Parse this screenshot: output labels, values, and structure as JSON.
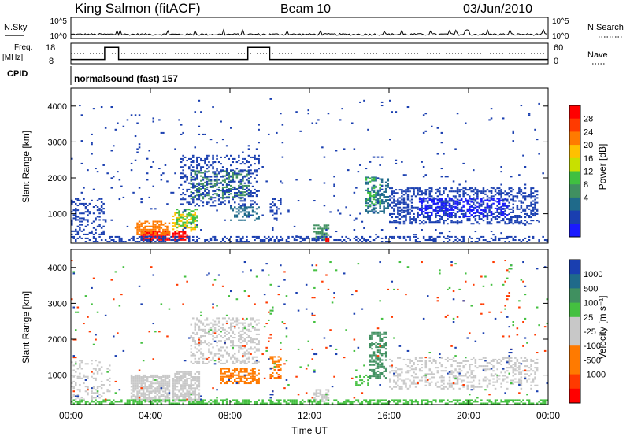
{
  "header": {
    "station": "King Salmon (fitACF)",
    "beam": "Beam 10",
    "date": "03/Jun/2010"
  },
  "status_panel": {
    "nsky_label": "N.Sky",
    "nsky_ticks": [
      "10^5",
      "10^0"
    ],
    "nsearch_label": "N.Search",
    "nsearch_ticks": [
      "10^5",
      "10^0"
    ],
    "freq_label_1": "Freq.",
    "freq_label_2": "[MHz]",
    "freq_ticks": [
      "18",
      "8"
    ],
    "nave_label": "Nave",
    "nave_ticks": [
      "60",
      "0"
    ],
    "cpid_label": "CPID",
    "cpid_text": "normalsound (fast) 157",
    "freq_steps": [
      {
        "t": 0.0,
        "f": 10
      },
      {
        "t": 1.7,
        "f": 10
      },
      {
        "t": 1.7,
        "f": 17
      },
      {
        "t": 2.4,
        "f": 17
      },
      {
        "t": 2.4,
        "f": 10
      },
      {
        "t": 8.9,
        "f": 10
      },
      {
        "t": 8.9,
        "f": 17
      },
      {
        "t": 10.0,
        "f": 17
      },
      {
        "t": 10.0,
        "f": 10
      },
      {
        "t": 24.0,
        "f": 10
      }
    ]
  },
  "legends": {
    "power": {
      "label": "Power [dB]",
      "ticks": [
        "28",
        "24",
        "20",
        "16",
        "12",
        "8",
        "4"
      ],
      "colors": [
        "#ff0000",
        "#ff3a00",
        "#ff7a00",
        "#ffc000",
        "#c8e000",
        "#40c040",
        "#409060",
        "#1f6a8a",
        "#1a3fb0",
        "#1a1aff"
      ]
    },
    "velocity": {
      "label": "Velocity [m s⁻¹]",
      "ticks": [
        "1000",
        "500",
        "100",
        "25",
        "-25",
        "-100",
        "-500",
        "-1000"
      ],
      "colors": [
        "#1a3fb0",
        "#1f6a8a",
        "#409060",
        "#44c040",
        "#c8c8c8",
        "#c8c8c8",
        "#ff7a00",
        "#ff7a00",
        "#ff3a00",
        "#ff0000"
      ]
    }
  },
  "chart_data": [
    {
      "type": "heatmap",
      "panel": "power",
      "ylabel": "Slant Range [km]",
      "yticks": [
        "4000",
        "3000",
        "2000",
        "1000"
      ],
      "ylim": [
        180,
        4500
      ],
      "xlim": [
        0,
        24
      ],
      "blobs": [
        {
          "t0": 3.5,
          "t1": 5.0,
          "r0": 250,
          "r1": 500,
          "color": "#ff0000",
          "density": 0.9
        },
        {
          "t0": 3.3,
          "t1": 5.0,
          "r0": 400,
          "r1": 800,
          "color": "#ff7a00",
          "density": 0.55
        },
        {
          "t0": 5.1,
          "t1": 6.0,
          "r0": 250,
          "r1": 500,
          "color": "#ff0000",
          "density": 0.7
        },
        {
          "t0": 5.1,
          "t1": 6.2,
          "r0": 500,
          "r1": 1000,
          "color": "#ffc000",
          "density": 0.5
        },
        {
          "t0": 5.3,
          "t1": 6.4,
          "r0": 600,
          "r1": 1100,
          "color": "#40c040",
          "density": 0.4
        },
        {
          "t0": 6.0,
          "t1": 9.0,
          "r0": 1400,
          "r1": 2200,
          "color": "#409060",
          "density": 0.35
        },
        {
          "t0": 5.5,
          "t1": 9.5,
          "r0": 1200,
          "r1": 2600,
          "color": "#1a3fb0",
          "density": 0.3
        },
        {
          "t0": 8.0,
          "t1": 9.5,
          "r0": 800,
          "r1": 1200,
          "color": "#1f6a8a",
          "density": 0.3
        },
        {
          "t0": 12.2,
          "t1": 13.0,
          "r0": 250,
          "r1": 700,
          "color": "#409060",
          "density": 0.5
        },
        {
          "t0": 12.6,
          "t1": 13.0,
          "r0": 200,
          "r1": 320,
          "color": "#ff0000",
          "density": 0.6
        },
        {
          "t0": 14.8,
          "t1": 16.0,
          "r0": 1000,
          "r1": 2000,
          "color": "#1f6a8a",
          "density": 0.45
        },
        {
          "t0": 14.8,
          "t1": 15.6,
          "r0": 1200,
          "r1": 2000,
          "color": "#40c040",
          "density": 0.25
        },
        {
          "t0": 16.0,
          "t1": 23.5,
          "r0": 700,
          "r1": 1700,
          "color": "#1a3fb0",
          "density": 0.4
        },
        {
          "t0": 17.5,
          "t1": 22.0,
          "r0": 900,
          "r1": 1400,
          "color": "#1a1aff",
          "density": 0.35
        },
        {
          "t0": 0.0,
          "t1": 1.8,
          "r0": 400,
          "r1": 1400,
          "color": "#1a3fb0",
          "density": 0.25
        },
        {
          "t0": 10.0,
          "t1": 10.6,
          "r0": 800,
          "r1": 1400,
          "color": "#1a3fb0",
          "density": 0.35
        },
        {
          "t0": 0.0,
          "t1": 24.0,
          "r0": 200,
          "r1": 340,
          "color": "#1a3fb0",
          "density": 0.35
        },
        {
          "t0": 0.0,
          "t1": 24.0,
          "r0": 350,
          "r1": 4200,
          "color": "#1a3fb0",
          "density": 0.015
        }
      ]
    },
    {
      "type": "heatmap",
      "panel": "velocity",
      "ylabel": "Slant Range [km]",
      "yticks": [
        "4000",
        "3000",
        "2000",
        "1000"
      ],
      "xticks": [
        "00:00",
        "04:00",
        "08:00",
        "12:00",
        "16:00",
        "20:00",
        "00:00"
      ],
      "xlabel": "Time UT",
      "ylim": [
        180,
        4500
      ],
      "xlim": [
        0,
        24
      ],
      "blobs": [
        {
          "t0": 3.0,
          "t1": 5.0,
          "r0": 250,
          "r1": 1000,
          "color": "#c8c8c8",
          "density": 0.75
        },
        {
          "t0": 5.1,
          "t1": 6.5,
          "r0": 250,
          "r1": 1100,
          "color": "#c8c8c8",
          "density": 0.75
        },
        {
          "t0": 6.0,
          "t1": 9.5,
          "r0": 1300,
          "r1": 2600,
          "color": "#c8c8c8",
          "density": 0.35
        },
        {
          "t0": 7.5,
          "t1": 9.5,
          "r0": 750,
          "r1": 1200,
          "color": "#ff7a00",
          "density": 0.6
        },
        {
          "t0": 10.0,
          "t1": 10.6,
          "r0": 900,
          "r1": 1500,
          "color": "#ff7a00",
          "density": 0.55
        },
        {
          "t0": 12.2,
          "t1": 13.0,
          "r0": 250,
          "r1": 600,
          "color": "#c8c8c8",
          "density": 0.6
        },
        {
          "t0": 15.0,
          "t1": 15.9,
          "r0": 900,
          "r1": 2200,
          "color": "#409060",
          "density": 0.55
        },
        {
          "t0": 14.3,
          "t1": 15.0,
          "r0": 700,
          "r1": 1000,
          "color": "#44c040",
          "density": 0.45
        },
        {
          "t0": 16.0,
          "t1": 23.5,
          "r0": 600,
          "r1": 1500,
          "color": "#c8c8c8",
          "density": 0.3
        },
        {
          "t0": 0.0,
          "t1": 24.0,
          "r0": 190,
          "r1": 300,
          "color": "#44c040",
          "density": 0.55
        },
        {
          "t0": 0.0,
          "t1": 2.0,
          "r0": 300,
          "r1": 1400,
          "color": "#c8c8c8",
          "density": 0.25
        },
        {
          "t0": 0.0,
          "t1": 24.0,
          "r0": 300,
          "r1": 4200,
          "color": "#ff3a00",
          "density": 0.008
        },
        {
          "t0": 0.0,
          "t1": 24.0,
          "r0": 300,
          "r1": 4200,
          "color": "#1a3fb0",
          "density": 0.006
        },
        {
          "t0": 0.0,
          "t1": 24.0,
          "r0": 300,
          "r1": 4200,
          "color": "#44c040",
          "density": 0.006
        }
      ]
    }
  ]
}
